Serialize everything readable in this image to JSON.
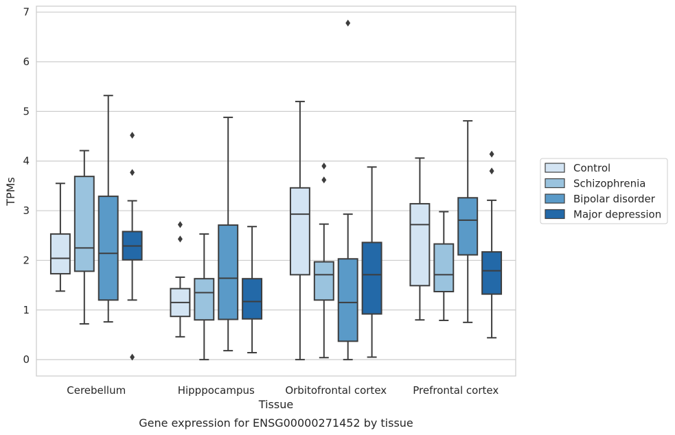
{
  "chart_data": {
    "type": "box",
    "title": "",
    "caption": "Gene expression for ENSG00000271452 by tissue",
    "xlabel": "Tissue",
    "ylabel": "TPMs",
    "ylim": [
      -0.33,
      7.12
    ],
    "yticks": [
      0,
      1,
      2,
      3,
      4,
      5,
      6,
      7
    ],
    "grid": "horizontal",
    "legend_position": "right",
    "categories": [
      "Cerebellum",
      "Hipppocampus",
      "Orbitofrontal cortex",
      "Prefrontal cortex"
    ],
    "series": [
      {
        "name": "Control",
        "color": "#d3e4f3",
        "boxes": [
          {
            "whislo": 1.38,
            "q1": 1.73,
            "med": 2.04,
            "q3": 2.53,
            "whishi": 3.55,
            "fliers": []
          },
          {
            "whislo": 0.46,
            "q1": 0.87,
            "med": 1.15,
            "q3": 1.43,
            "whishi": 1.66,
            "fliers": [
              2.43,
              2.72
            ]
          },
          {
            "whislo": 0.0,
            "q1": 1.71,
            "med": 2.93,
            "q3": 3.46,
            "whishi": 5.2,
            "fliers": []
          },
          {
            "whislo": 0.8,
            "q1": 1.49,
            "med": 2.72,
            "q3": 3.14,
            "whishi": 4.06,
            "fliers": []
          }
        ]
      },
      {
        "name": "Schizophrenia",
        "color": "#9ac3de",
        "boxes": [
          {
            "whislo": 0.72,
            "q1": 1.78,
            "med": 2.25,
            "q3": 3.69,
            "whishi": 4.21,
            "fliers": []
          },
          {
            "whislo": 0.0,
            "q1": 0.8,
            "med": 1.35,
            "q3": 1.63,
            "whishi": 2.53,
            "fliers": []
          },
          {
            "whislo": 0.04,
            "q1": 1.2,
            "med": 1.71,
            "q3": 1.97,
            "whishi": 2.73,
            "fliers": [
              3.62,
              3.9
            ]
          },
          {
            "whislo": 0.79,
            "q1": 1.37,
            "med": 1.71,
            "q3": 2.33,
            "whishi": 2.98,
            "fliers": []
          }
        ]
      },
      {
        "name": "Bipolar disorder",
        "color": "#5a9ac8",
        "boxes": [
          {
            "whislo": 0.76,
            "q1": 1.2,
            "med": 2.14,
            "q3": 3.29,
            "whishi": 5.32,
            "fliers": []
          },
          {
            "whislo": 0.18,
            "q1": 0.81,
            "med": 1.64,
            "q3": 2.71,
            "whishi": 4.88,
            "fliers": []
          },
          {
            "whislo": 0.0,
            "q1": 0.37,
            "med": 1.15,
            "q3": 2.03,
            "whishi": 2.93,
            "fliers": [
              6.78
            ]
          },
          {
            "whislo": 0.75,
            "q1": 2.11,
            "med": 2.81,
            "q3": 3.26,
            "whishi": 4.81,
            "fliers": []
          }
        ]
      },
      {
        "name": "Major depression",
        "color": "#2369a8",
        "boxes": [
          {
            "whislo": 1.2,
            "q1": 2.01,
            "med": 2.29,
            "q3": 2.58,
            "whishi": 3.2,
            "fliers": [
              0.05,
              3.77,
              4.52
            ]
          },
          {
            "whislo": 0.14,
            "q1": 0.82,
            "med": 1.17,
            "q3": 1.63,
            "whishi": 2.68,
            "fliers": []
          },
          {
            "whislo": 0.05,
            "q1": 0.92,
            "med": 1.71,
            "q3": 2.36,
            "whishi": 3.88,
            "fliers": []
          },
          {
            "whislo": 0.44,
            "q1": 1.32,
            "med": 1.79,
            "q3": 2.17,
            "whishi": 3.21,
            "fliers": [
              3.8,
              4.14
            ]
          }
        ]
      }
    ]
  }
}
